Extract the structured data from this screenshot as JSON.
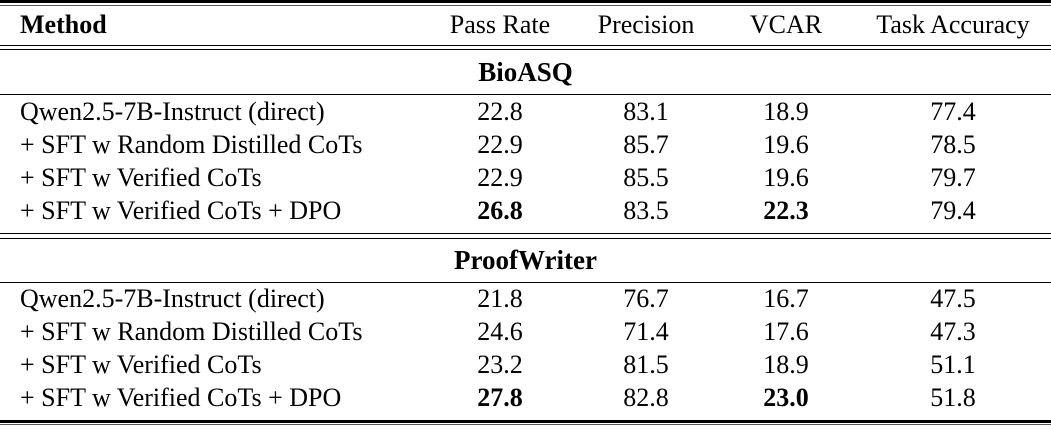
{
  "table": {
    "columns": [
      "Method",
      "Pass Rate",
      "Precision",
      "VCAR",
      "Task Accuracy"
    ],
    "sections": [
      {
        "title": "BioASQ",
        "rows": [
          {
            "method": "Qwen2.5-7B-Instruct (direct)",
            "pass_rate": "22.8",
            "precision": "83.1",
            "vcar": "18.9",
            "task_accuracy": "77.4"
          },
          {
            "method": "+ SFT w Random Distilled CoTs",
            "pass_rate": "22.9",
            "precision": "85.7",
            "vcar": "19.6",
            "task_accuracy": "78.5"
          },
          {
            "method": "+ SFT w Verified CoTs",
            "pass_rate": "22.9",
            "precision": "85.5",
            "vcar": "19.6",
            "task_accuracy": "79.7"
          },
          {
            "method": "+ SFT w Verified CoTs + DPO",
            "pass_rate": "26.8",
            "precision": "83.5",
            "vcar": "22.3",
            "task_accuracy": "79.4"
          }
        ]
      },
      {
        "title": "ProofWriter",
        "rows": [
          {
            "method": "Qwen2.5-7B-Instruct (direct)",
            "pass_rate": "21.8",
            "precision": "76.7",
            "vcar": "16.7",
            "task_accuracy": "47.5"
          },
          {
            "method": "+ SFT w Random Distilled CoTs",
            "pass_rate": "24.6",
            "precision": "71.4",
            "vcar": "17.6",
            "task_accuracy": "47.3"
          },
          {
            "method": "+ SFT w Verified CoTs",
            "pass_rate": "23.2",
            "precision": "81.5",
            "vcar": "18.9",
            "task_accuracy": "51.1"
          },
          {
            "method": "+ SFT w Verified CoTs + DPO",
            "pass_rate": "27.8",
            "precision": "82.8",
            "vcar": "23.0",
            "task_accuracy": "51.8"
          }
        ]
      }
    ],
    "bold_values_note": "Best Pass Rate and VCAR per section shown in bold: 26.8, 22.3, 27.8, 23.0",
    "colors": {
      "text": "#000000",
      "background": "#ffffff",
      "rule": "#000000"
    }
  }
}
